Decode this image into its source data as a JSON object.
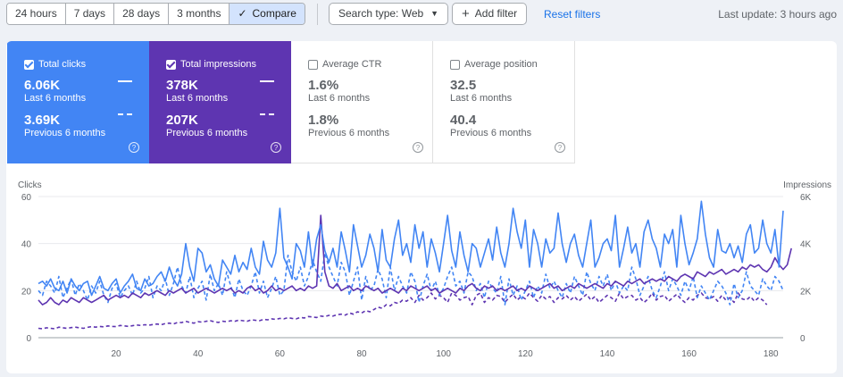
{
  "toolbar": {
    "ranges": [
      "24 hours",
      "7 days",
      "28 days",
      "3 months"
    ],
    "compare_label": "Compare",
    "search_type_label": "Search type: Web",
    "add_filter_label": "Add filter",
    "reset_filters_label": "Reset filters",
    "last_update": "Last update: 3 hours ago"
  },
  "metrics": [
    {
      "title": "Total clicks",
      "checked": true,
      "current_value": "6.06K",
      "current_label": "Last 6 months",
      "previous_value": "3.69K",
      "previous_label": "Previous 6 months",
      "color": "#4285f4"
    },
    {
      "title": "Total impressions",
      "checked": true,
      "current_value": "378K",
      "current_label": "Last 6 months",
      "previous_value": "207K",
      "previous_label": "Previous 6 months",
      "color": "#5e35b1"
    },
    {
      "title": "Average CTR",
      "checked": false,
      "current_value": "1.6%",
      "current_label": "Last 6 months",
      "previous_value": "1.8%",
      "previous_label": "Previous 6 months",
      "color": "#00897b"
    },
    {
      "title": "Average position",
      "checked": false,
      "current_value": "32.5",
      "current_label": "Last 6 months",
      "previous_value": "40.4",
      "previous_label": "Previous 6 months",
      "color": "#e8710a"
    }
  ],
  "chart_data": {
    "type": "line",
    "title": "",
    "ylabel_left": "Clicks",
    "ylabel_right": "Impressions",
    "y_left": {
      "min": 0,
      "max": 60,
      "ticks": [
        0,
        20,
        40,
        60
      ],
      "tick_labels": [
        "0",
        "20",
        "40",
        "60"
      ]
    },
    "y_right": {
      "min": 0,
      "max": 6000,
      "ticks": [
        0,
        2000,
        4000,
        6000
      ],
      "tick_labels": [
        "0",
        "2K",
        "4K",
        "6K"
      ]
    },
    "x": {
      "min": 1,
      "max": 183,
      "ticks": [
        20,
        40,
        60,
        80,
        100,
        120,
        140,
        160,
        180
      ],
      "tick_labels": [
        "20",
        "40",
        "60",
        "80",
        "100",
        "120",
        "140",
        "160",
        "180"
      ]
    },
    "grid": true,
    "series": [
      {
        "name": "Clicks (Last 6 months)",
        "axis": "left",
        "style": "solid",
        "color": "#4285f4",
        "values": [
          23,
          24,
          22,
          25,
          21,
          20,
          24,
          19,
          25,
          22,
          20,
          23,
          24,
          18,
          22,
          26,
          21,
          20,
          23,
          25,
          19,
          22,
          24,
          27,
          21,
          20,
          25,
          22,
          23,
          26,
          28,
          24,
          30,
          25,
          22,
          27,
          40,
          30,
          24,
          38,
          36,
          28,
          31,
          25,
          22,
          33,
          30,
          27,
          35,
          28,
          32,
          29,
          38,
          30,
          27,
          41,
          33,
          30,
          36,
          55,
          34,
          30,
          25,
          40,
          37,
          30,
          45,
          30,
          42,
          48,
          37,
          32,
          38,
          30,
          45,
          37,
          28,
          48,
          39,
          30,
          35,
          44,
          38,
          28,
          46,
          33,
          30,
          42,
          50,
          35,
          40,
          32,
          48,
          38,
          45,
          30,
          42,
          36,
          28,
          40,
          52,
          37,
          30,
          45,
          35,
          28,
          40,
          38,
          30,
          36,
          42,
          33,
          47,
          36,
          30,
          40,
          55,
          45,
          38,
          50,
          30,
          46,
          40,
          30,
          42,
          36,
          38,
          53,
          40,
          32,
          40,
          44,
          35,
          30,
          40,
          50,
          30,
          34,
          40,
          42,
          37,
          52,
          30,
          38,
          47,
          36,
          40,
          30,
          45,
          50,
          42,
          38,
          30,
          44,
          40,
          46,
          30,
          52,
          40,
          31,
          36,
          42,
          58,
          44,
          34,
          30,
          46,
          37,
          36,
          40,
          34,
          39,
          32,
          44,
          48,
          36,
          38,
          50,
          40,
          36,
          46,
          30,
          54
        ]
      },
      {
        "name": "Clicks (Previous 6 months)",
        "axis": "left",
        "style": "dashed",
        "color": "#4285f4",
        "values": [
          20,
          18,
          24,
          22,
          19,
          26,
          17,
          21,
          25,
          18,
          23,
          20,
          16,
          22,
          19,
          24,
          18,
          15,
          21,
          23,
          17,
          20,
          22,
          18,
          24,
          19,
          21,
          26,
          17,
          22,
          20,
          25,
          18,
          23,
          30,
          22,
          19,
          26,
          17,
          21,
          24,
          16,
          27,
          20,
          23,
          18,
          28,
          22,
          17,
          25,
          20,
          18,
          22,
          28,
          19,
          24,
          17,
          21,
          26,
          18,
          20,
          35,
          28,
          24,
          30,
          22,
          26,
          33,
          28,
          24,
          36,
          30,
          26,
          22,
          32,
          28,
          18,
          24,
          30,
          16,
          26,
          20,
          22,
          29,
          25,
          17,
          30,
          20,
          26,
          22,
          19,
          28,
          24,
          15,
          22,
          27,
          20,
          24,
          18,
          21,
          26,
          30,
          22,
          24,
          19,
          28,
          26,
          20,
          23,
          17,
          24,
          21,
          19,
          26,
          14,
          25,
          18,
          22,
          16,
          20,
          24,
          17,
          22,
          19,
          27,
          21,
          24,
          20,
          17,
          23,
          19,
          26,
          22,
          18,
          28,
          23,
          20,
          26,
          22,
          27,
          20,
          24,
          19,
          22,
          20,
          30,
          25,
          18,
          22,
          26,
          20,
          17,
          22,
          28,
          20,
          25,
          22,
          18,
          24,
          20,
          26,
          17,
          22,
          19,
          16,
          20,
          24,
          22,
          19,
          14,
          23,
          17,
          20,
          28,
          22,
          20,
          18,
          25,
          22,
          20,
          26,
          24,
          20
        ]
      },
      {
        "name": "Impressions (Last 6 months)",
        "axis": "right",
        "style": "solid",
        "color": "#5e35b1",
        "values": [
          1600,
          1400,
          1500,
          1700,
          1500,
          1400,
          1600,
          1500,
          1700,
          1600,
          1500,
          1700,
          1600,
          1500,
          1600,
          1700,
          1800,
          1600,
          1700,
          1800,
          1700,
          1800,
          1700,
          1900,
          1800,
          1700,
          1900,
          1800,
          1900,
          2000,
          1900,
          1800,
          2000,
          1900,
          2000,
          2100,
          1900,
          2000,
          2100,
          1900,
          2000,
          2100,
          2000,
          1900,
          2000,
          2100,
          2000,
          2100,
          1900,
          2000,
          1900,
          2100,
          2200,
          2000,
          2100,
          1900,
          2000,
          2200,
          2000,
          2100,
          2000,
          2100,
          2200,
          2000,
          2100,
          2000,
          2200,
          2100,
          2200,
          5200,
          2800,
          2200,
          2100,
          2300,
          2000,
          2100,
          2200,
          2000,
          2100,
          2000,
          2200,
          2100,
          2000,
          2100,
          1900,
          2000,
          2100,
          2000,
          1900,
          2100,
          2000,
          2200,
          2100,
          2000,
          2100,
          2200,
          2000,
          2100,
          1900,
          2000,
          2100,
          2000,
          1900,
          2100,
          2000,
          2200,
          2300,
          2100,
          2000,
          2200,
          2100,
          2200,
          2000,
          2100,
          2000,
          2100,
          2200,
          2000,
          2100,
          2000,
          2200,
          2100,
          2000,
          2100,
          2200,
          2300,
          2100,
          2200,
          2000,
          2100,
          2200,
          2100,
          2300,
          2200,
          2100,
          2200,
          2300,
          2200,
          2100,
          2300,
          2200,
          2400,
          2300,
          2200,
          2400,
          2300,
          2400,
          2500,
          2300,
          2400,
          2500,
          2400,
          2500,
          2400,
          2600,
          2500,
          2400,
          2600,
          2700,
          2600,
          2500,
          2800,
          2700,
          2600,
          2800,
          2700,
          2800,
          2900,
          2700,
          2800,
          2900,
          2800,
          3000,
          2900,
          3100,
          3000,
          3100,
          2900,
          2800,
          3000,
          3400,
          3100,
          2900,
          3100,
          3800
        ]
      },
      {
        "name": "Impressions (Previous 6 months)",
        "axis": "right",
        "style": "dashed",
        "color": "#5e35b1",
        "values": [
          400,
          380,
          420,
          400,
          380,
          450,
          420,
          400,
          430,
          450,
          420,
          400,
          440,
          470,
          450,
          480,
          460,
          500,
          480,
          470,
          520,
          500,
          480,
          510,
          540,
          520,
          550,
          530,
          560,
          580,
          550,
          600,
          620,
          580,
          650,
          640,
          700,
          650,
          620,
          680,
          660,
          700,
          720,
          680,
          650,
          700,
          680,
          720,
          700,
          750,
          720,
          700,
          760,
          740,
          720,
          780,
          760,
          800,
          780,
          820,
          800,
          850,
          820,
          800,
          860,
          840,
          900,
          880,
          860,
          920,
          900,
          950,
          920,
          980,
          1000,
          960,
          1050,
          1000,
          1100,
          1050,
          1150,
          1100,
          1200,
          1300,
          1250,
          1400,
          1350,
          1500,
          1450,
          1600,
          1550,
          1700,
          1500,
          1800,
          1600,
          1700,
          1900,
          1650,
          1800,
          1700,
          1500,
          1900,
          1800,
          1600,
          1700,
          1750,
          1400,
          1800,
          1900,
          1500,
          1700,
          1600,
          1800,
          1750,
          1500,
          1700,
          1850,
          1600,
          1750,
          1650,
          1900,
          1700,
          1550,
          1800,
          1650,
          1750,
          1500,
          1700,
          1650,
          1800,
          1600,
          1750,
          1550,
          1700,
          1850,
          1600,
          1750,
          1500,
          1650,
          1800,
          1700,
          1550,
          1900,
          1650,
          1750,
          1800,
          1600,
          1700,
          1500,
          1650,
          1900,
          1600,
          1750,
          1800,
          1550,
          1700,
          1850,
          1650,
          1500,
          1700,
          1600,
          1800,
          1900,
          1700,
          1650,
          1750,
          1550,
          1800,
          1600,
          1700,
          1500,
          1900,
          1650,
          1600,
          1750,
          1550,
          1700,
          1600,
          1400
        ]
      }
    ]
  }
}
